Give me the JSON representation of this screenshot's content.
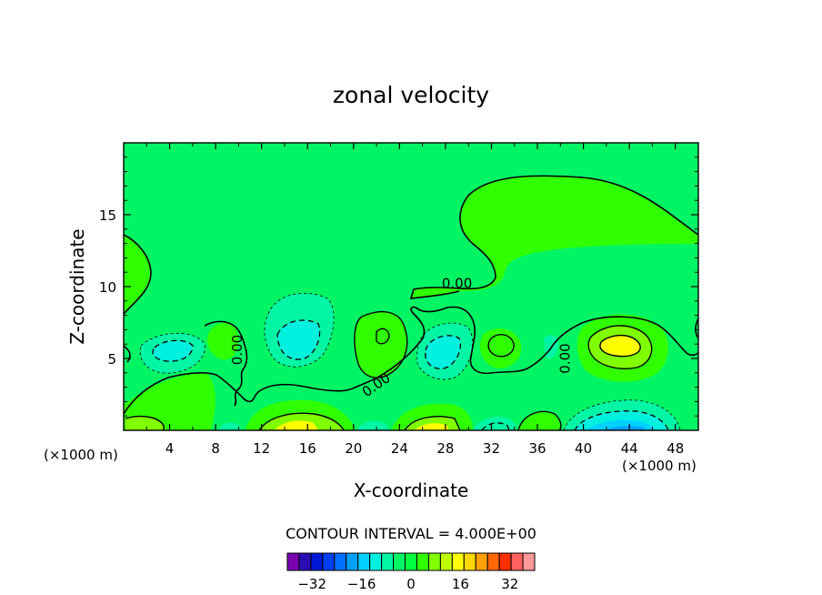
{
  "chart_data": {
    "type": "heatmap",
    "title": "zonal velocity",
    "xlabel": "X-coordinate",
    "ylabel": "Z-coordinate",
    "x_unit_label": "(×1000 m)",
    "xlim": [
      0,
      50
    ],
    "ylim": [
      0,
      20
    ],
    "x_ticks": [
      4,
      8,
      12,
      16,
      20,
      24,
      28,
      32,
      36,
      40,
      44,
      48
    ],
    "y_ticks": [
      5,
      10,
      15
    ],
    "contour_labels": [
      {
        "text": "0.00",
        "x": 29,
        "z": 9.9
      },
      {
        "text": "0.00",
        "x": 10.3,
        "z": 5.6
      },
      {
        "text": "0.00",
        "x": 22.2,
        "z": 2.9
      },
      {
        "text": "0.00",
        "x": 38.8,
        "z": 5.0
      }
    ],
    "contour_interval_text": "CONTOUR INTERVAL = 4.000E+00",
    "colorbar": {
      "levels": [
        -40,
        -36,
        -32,
        -28,
        -24,
        -20,
        -16,
        -12,
        -8,
        -4,
        0,
        4,
        8,
        12,
        16,
        20,
        24,
        28,
        32,
        36,
        40
      ],
      "colors": [
        "#7a00b0",
        "#2c0fb3",
        "#0019d8",
        "#0040f5",
        "#0070ff",
        "#00a0ff",
        "#00d0ff",
        "#00f0e0",
        "#00f5a5",
        "#00f565",
        "#00ff40",
        "#30ff00",
        "#80ff00",
        "#c0ff00",
        "#ffff00",
        "#ffd800",
        "#ffa000",
        "#ff6800",
        "#ff3000",
        "#ff6060",
        "#ff9898"
      ],
      "tick_labels": [
        "-32",
        "-16",
        "0",
        "16",
        "32"
      ],
      "tick_values": [
        -32,
        -16,
        0,
        16,
        32
      ]
    },
    "zero_contour_color": "#000000",
    "negative_contour_style": "dashed",
    "positive_contour_style": "solid"
  }
}
